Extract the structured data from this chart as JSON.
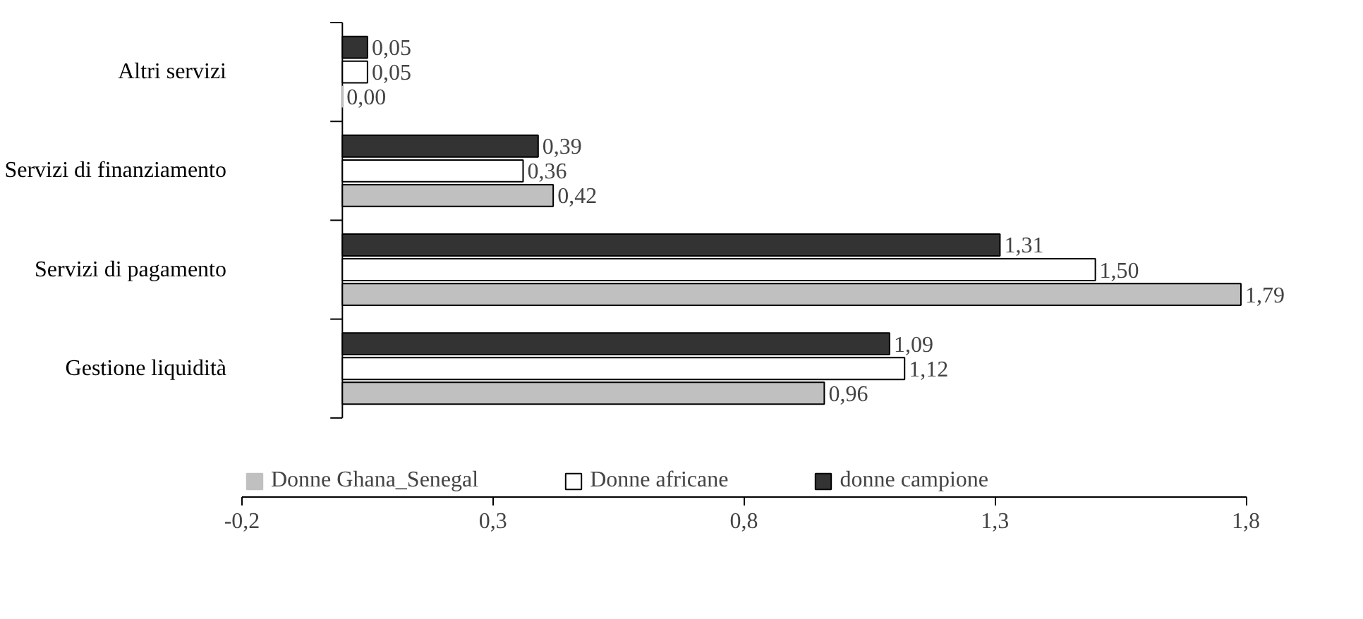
{
  "chart_data": {
    "type": "bar",
    "orientation": "horizontal",
    "categories": [
      "Altri servizi",
      "Servizi di finanziamento",
      "Servizi di pagamento",
      "Gestione liquidità"
    ],
    "series": [
      {
        "name": "donne campione",
        "color": "#333333",
        "values": [
          0.05,
          0.39,
          1.31,
          1.09
        ],
        "value_labels": [
          "0,05",
          "0,39",
          "1,31",
          "1,09"
        ]
      },
      {
        "name": "Donne africane",
        "color": "#ffffff",
        "values": [
          0.05,
          0.36,
          1.5,
          1.12
        ],
        "value_labels": [
          "0,05",
          "0,36",
          "1,50",
          "1,12"
        ]
      },
      {
        "name": "Donne Ghana_Senegal",
        "color": "#c0c0c0",
        "values": [
          0.0,
          0.42,
          1.79,
          0.96
        ],
        "value_labels": [
          "0,00",
          "0,42",
          "1,79",
          "0,96"
        ]
      }
    ],
    "xlim": [
      -0.2,
      1.8
    ],
    "xticks": [
      {
        "value": -0.2,
        "label": "-0,2"
      },
      {
        "value": 0.3,
        "label": "0,3"
      },
      {
        "value": 0.8,
        "label": "0,8"
      },
      {
        "value": 1.3,
        "label": "1,3"
      },
      {
        "value": 1.8,
        "label": "1,8"
      }
    ],
    "grid": false,
    "legend": "bottom"
  }
}
